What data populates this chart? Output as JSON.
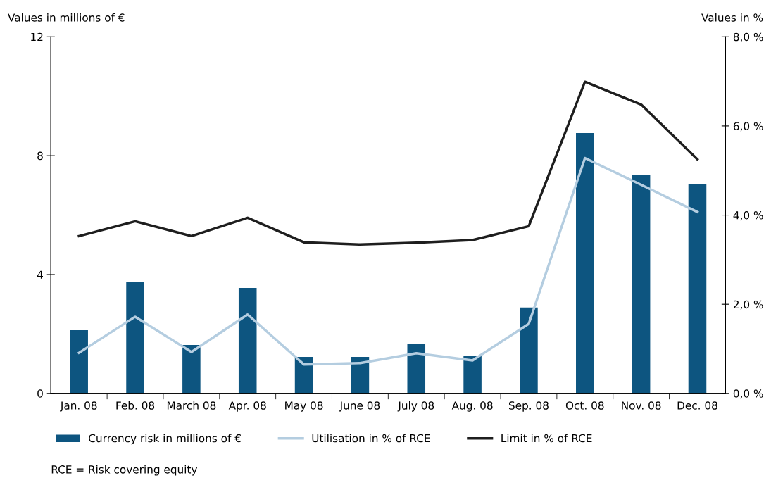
{
  "chart_data": {
    "type": "bar",
    "categories": [
      "Jan. 08",
      "Feb. 08",
      "March 08",
      "Apr. 08",
      "May 08",
      "June 08",
      "July 08",
      "Aug. 08",
      "Sep. 08",
      "Oct. 08",
      "Nov. 08",
      "Dec. 08"
    ],
    "series": [
      {
        "name": "Currency risk in millions of €",
        "color": "#0d5580",
        "values": [
          2.13,
          3.76,
          1.63,
          3.55,
          1.23,
          1.23,
          1.66,
          1.25,
          2.89,
          8.76,
          7.36,
          7.05
        ]
      },
      {
        "name": "Utilisation in % of RCE",
        "type": "line",
        "axis": "y2",
        "color": "#b4cde0",
        "values": [
          0.91,
          1.72,
          0.93,
          1.77,
          0.65,
          0.68,
          0.9,
          0.74,
          1.56,
          5.28,
          4.68,
          4.07
        ]
      },
      {
        "name": "Limit in % of RCE",
        "type": "line",
        "axis": "y2",
        "color": "#1e1e1e",
        "values": [
          3.53,
          3.86,
          3.53,
          3.94,
          3.39,
          3.34,
          3.38,
          3.44,
          3.75,
          6.99,
          6.48,
          5.25
        ]
      }
    ],
    "ylabel": "Values in millions of €",
    "y2label": "Values in %",
    "ylim": [
      0,
      12
    ],
    "yticks": [
      0,
      4,
      8,
      12
    ],
    "y2lim": [
      0,
      8
    ],
    "y2ticks": [
      {
        "value": 0,
        "label": "0,0 %"
      },
      {
        "value": 2,
        "label": "2,0 %"
      },
      {
        "value": 4,
        "label": "4,0 %"
      },
      {
        "value": 6,
        "label": "6,0 %"
      },
      {
        "value": 8,
        "label": "8,0 %"
      }
    ],
    "legend": "bottom",
    "grid": false,
    "marker": "none",
    "line_style": "solid",
    "annotations": [
      "RCE = Risk covering equity"
    ]
  }
}
